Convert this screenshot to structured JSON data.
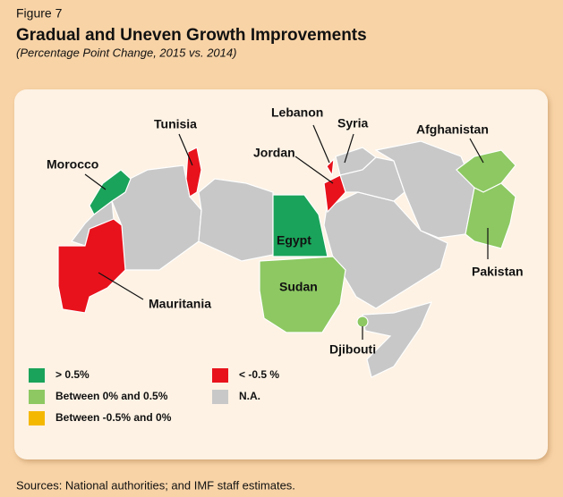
{
  "figure_label": "Figure 7",
  "title": "Gradual and Uneven Growth Improvements",
  "subtitle": "(Percentage Point Change, 2015 vs. 2014)",
  "countries": [
    {
      "name": "Morocco",
      "color": "#1aa35a"
    },
    {
      "name": "Tunisia",
      "color": "#e8121c"
    },
    {
      "name": "Lebanon",
      "color": "#e8121c"
    },
    {
      "name": "Syria",
      "color": "#c8c8c8"
    },
    {
      "name": "Jordan",
      "color": "#e8121c"
    },
    {
      "name": "Afghanistan",
      "color": "#8dc862"
    },
    {
      "name": "Egypt",
      "color": "#1aa35a"
    },
    {
      "name": "Sudan",
      "color": "#8dc862"
    },
    {
      "name": "Pakistan",
      "color": "#8dc862"
    },
    {
      "name": "Mauritania",
      "color": "#e8121c"
    },
    {
      "name": "Djibouti",
      "color": "#8dc862"
    }
  ],
  "legend": [
    {
      "label": "> 0.5%",
      "color": "#1aa35a"
    },
    {
      "label": "Between 0% and 0.5%",
      "color": "#8dc862"
    },
    {
      "label": "Between -0.5% and 0%",
      "color": "#f5b800"
    },
    {
      "label": "< -0.5 %",
      "color": "#e8121c"
    },
    {
      "label": "N.A.",
      "color": "#c8c8c8"
    }
  ],
  "source": "Sources: National authorities; and IMF staff estimates."
}
